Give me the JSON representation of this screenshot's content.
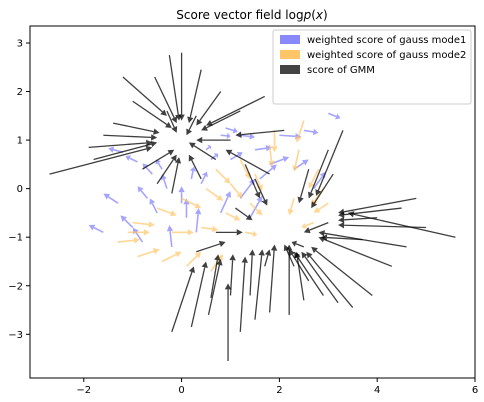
{
  "chart_data": {
    "type": "quiver",
    "title": "Score vector field log p(x)",
    "xlabel": "",
    "ylabel": "",
    "xlim": [
      -3.1,
      6.0
    ],
    "ylim": [
      -3.9,
      3.35
    ],
    "xticks": [
      -2,
      0,
      2,
      4,
      6
    ],
    "yticks": [
      -3,
      -2,
      -1,
      0,
      1,
      2,
      3
    ],
    "xtick_labels": [
      "−2",
      "0",
      "2",
      "4",
      "6"
    ],
    "ytick_labels": [
      "−3",
      "−2",
      "−1",
      "0",
      "1",
      "2",
      "3"
    ],
    "grid": false,
    "legend_position": "top-right",
    "modes": [
      {
        "center": [
          0,
          1
        ]
      },
      {
        "center": [
          2,
          -1
        ]
      }
    ],
    "series": [
      {
        "name": "weighted score of gauss mode1",
        "color": "#8888ff",
        "arrows": [
          [
            -1.2,
            0.75,
            -0.3,
            0.08
          ],
          [
            -0.9,
            0.55,
            -0.25,
            0.12
          ],
          [
            -0.6,
            0.3,
            -0.2,
            0.22
          ],
          [
            -0.3,
            0.0,
            -0.1,
            0.3
          ],
          [
            0.0,
            -0.3,
            0.0,
            0.35
          ],
          [
            0.4,
            0.1,
            0.12,
            0.25
          ],
          [
            0.6,
            0.6,
            0.15,
            0.12
          ],
          [
            0.8,
            1.1,
            0.2,
            -0.02
          ],
          [
            0.9,
            1.25,
            0.25,
            -0.08
          ],
          [
            1.2,
            1.1,
            0.3,
            -0.04
          ],
          [
            1.5,
            0.8,
            0.35,
            0.05
          ],
          [
            1.8,
            0.5,
            0.4,
            0.15
          ],
          [
            2.0,
            1.1,
            0.45,
            -0.03
          ],
          [
            2.5,
            1.2,
            0.3,
            -0.05
          ],
          [
            3.0,
            1.55,
            0.25,
            -0.1
          ],
          [
            -0.5,
            -0.5,
            -0.15,
            0.3
          ],
          [
            -1.0,
            -0.8,
            -0.25,
            0.25
          ],
          [
            -1.6,
            -0.9,
            -0.3,
            0.15
          ],
          [
            -0.8,
            -1.1,
            -0.2,
            0.3
          ],
          [
            -0.2,
            -1.2,
            -0.05,
            0.45
          ],
          [
            0.3,
            -0.9,
            0.05,
            0.5
          ],
          [
            0.8,
            -0.5,
            0.2,
            0.45
          ],
          [
            1.2,
            -0.2,
            0.3,
            0.4
          ],
          [
            1.6,
            0.2,
            0.35,
            0.3
          ],
          [
            0.2,
            0.2,
            0.05,
            0.25
          ],
          [
            -0.4,
            0.4,
            -0.12,
            0.2
          ],
          [
            0.5,
            0.8,
            0.1,
            0.08
          ],
          [
            1.0,
            0.6,
            0.25,
            0.15
          ],
          [
            2.3,
            0.4,
            0.3,
            0.2
          ],
          [
            2.7,
            0.0,
            0.25,
            0.35
          ],
          [
            -1.3,
            -0.3,
            -0.3,
            0.2
          ],
          [
            -0.7,
            -0.2,
            -0.2,
            0.25
          ],
          [
            0.1,
            -0.6,
            0.0,
            0.4
          ],
          [
            1.4,
            -0.6,
            0.25,
            0.45
          ]
        ]
      },
      {
        "name": "weighted score of gauss mode2",
        "color": "#ffc566",
        "arrows": [
          [
            -1.3,
            -1.1,
            0.45,
            0.05
          ],
          [
            -0.9,
            -1.4,
            0.45,
            0.15
          ],
          [
            -0.4,
            -1.5,
            0.4,
            0.2
          ],
          [
            0.1,
            -1.6,
            0.3,
            0.3
          ],
          [
            0.6,
            -1.7,
            0.25,
            0.35
          ],
          [
            -1.0,
            -0.7,
            0.45,
            -0.05
          ],
          [
            -0.5,
            -0.4,
            0.4,
            -0.15
          ],
          [
            0.0,
            -0.2,
            0.4,
            -0.2
          ],
          [
            0.5,
            0.0,
            0.35,
            -0.25
          ],
          [
            1.0,
            0.1,
            0.25,
            -0.3
          ],
          [
            1.5,
            0.3,
            0.15,
            -0.35
          ],
          [
            1.8,
            0.9,
            0.05,
            -0.45
          ],
          [
            1.9,
            1.2,
            0.0,
            -0.45
          ],
          [
            2.4,
            0.8,
            -0.1,
            -0.45
          ],
          [
            2.8,
            0.4,
            -0.2,
            -0.4
          ],
          [
            2.9,
            0.0,
            -0.25,
            -0.35
          ],
          [
            3.0,
            -0.3,
            -0.3,
            -0.2
          ],
          [
            2.7,
            -0.7,
            -0.25,
            -0.1
          ],
          [
            1.3,
            -0.9,
            0.25,
            -0.05
          ],
          [
            0.9,
            -0.5,
            0.3,
            -0.15
          ],
          [
            0.4,
            -0.8,
            0.35,
            -0.05
          ],
          [
            -0.2,
            -0.9,
            0.45,
            0.0
          ],
          [
            1.4,
            -0.3,
            0.25,
            -0.25
          ],
          [
            2.3,
            -0.2,
            -0.1,
            -0.35
          ],
          [
            2.5,
            1.4,
            -0.15,
            -0.45
          ],
          [
            1.2,
            0.6,
            0.2,
            -0.4
          ],
          [
            0.7,
            0.4,
            0.3,
            -0.3
          ],
          [
            -1.1,
            -0.9,
            0.45,
            0.0
          ]
        ]
      },
      {
        "name": "score of GMM",
        "color": "#000000",
        "arrows": [
          [
            -2.7,
            0.3,
            2.1,
            0.55
          ],
          [
            -1.9,
            0.85,
            1.3,
            0.1
          ],
          [
            -1.4,
            1.35,
            0.95,
            -0.2
          ],
          [
            -1.0,
            1.8,
            0.8,
            -0.55
          ],
          [
            -0.55,
            2.3,
            0.45,
            -0.95
          ],
          [
            -0.25,
            2.75,
            0.2,
            -1.35
          ],
          [
            0.0,
            2.8,
            0.0,
            -1.4
          ],
          [
            0.4,
            2.45,
            -0.25,
            -1.1
          ],
          [
            0.8,
            2.0,
            -0.5,
            -0.7
          ],
          [
            1.2,
            1.6,
            -0.8,
            -0.4
          ],
          [
            1.7,
            1.9,
            -1.2,
            -0.6
          ],
          [
            -1.2,
            2.3,
            0.9,
            -0.8
          ],
          [
            -0.8,
            0.4,
            0.65,
            0.4
          ],
          [
            -0.5,
            0.1,
            0.4,
            0.6
          ],
          [
            -0.2,
            -0.1,
            0.15,
            0.75
          ],
          [
            0.4,
            0.2,
            -0.25,
            0.5
          ],
          [
            0.7,
            0.6,
            -0.55,
            0.35
          ],
          [
            1.0,
            1.0,
            -0.7,
            0.0
          ],
          [
            -1.6,
            1.1,
            1.1,
            -0.05
          ],
          [
            -1.8,
            0.6,
            1.3,
            0.35
          ],
          [
            -0.3,
            1.6,
            0.2,
            -0.45
          ],
          [
            0.3,
            1.5,
            -0.2,
            -0.4
          ],
          [
            1.8,
            0.3,
            -0.9,
            0.5
          ],
          [
            2.1,
            1.2,
            -1.0,
            -0.1
          ],
          [
            2.3,
            -1.6,
            -0.2,
            0.45
          ],
          [
            2.6,
            -1.9,
            -0.4,
            0.65
          ],
          [
            2.9,
            -2.2,
            -0.6,
            0.9
          ],
          [
            3.2,
            -2.35,
            -0.75,
            1.05
          ],
          [
            3.5,
            -2.45,
            -0.95,
            1.15
          ],
          [
            3.9,
            -2.2,
            -1.25,
            1.0
          ],
          [
            4.3,
            -1.6,
            -1.5,
            0.6
          ],
          [
            4.6,
            -1.2,
            -1.8,
            0.3
          ],
          [
            5.0,
            -0.8,
            -1.8,
            0.05
          ],
          [
            5.6,
            -1.0,
            -2.2,
            0.5
          ],
          [
            4.8,
            -0.2,
            -1.6,
            -0.3
          ],
          [
            4.5,
            -0.4,
            -1.3,
            -0.15
          ],
          [
            4.0,
            -0.6,
            -0.8,
            -0.05
          ],
          [
            3.7,
            -1.05,
            -0.85,
            0.05
          ],
          [
            -0.2,
            -2.95,
            0.45,
            1.35
          ],
          [
            0.2,
            -2.85,
            0.3,
            1.35
          ],
          [
            0.55,
            -2.6,
            0.25,
            1.15
          ],
          [
            0.95,
            -3.55,
            0.0,
            1.6
          ],
          [
            1.2,
            -2.95,
            0.1,
            1.55
          ],
          [
            1.5,
            -2.7,
            0.15,
            1.45
          ],
          [
            1.8,
            -2.55,
            0.1,
            1.4
          ],
          [
            2.2,
            -2.6,
            0.0,
            1.45
          ],
          [
            0.6,
            -2.25,
            0.15,
            0.9
          ],
          [
            1.0,
            -2.2,
            0.05,
            0.85
          ],
          [
            1.4,
            -2.2,
            0.05,
            0.95
          ],
          [
            2.5,
            -2.3,
            -0.15,
            1.0
          ],
          [
            3.1,
            0.3,
            -0.45,
            -0.7
          ],
          [
            3.3,
            1.2,
            -0.55,
            -1.35
          ],
          [
            3.0,
            0.8,
            -0.4,
            -1.0
          ],
          [
            2.6,
            0.4,
            -0.2,
            -0.7
          ],
          [
            1.5,
            0.2,
            0.25,
            -0.55
          ],
          [
            1.1,
            -0.4,
            0.35,
            -0.25
          ],
          [
            0.7,
            -0.9,
            0.55,
            0.0
          ],
          [
            0.3,
            -1.3,
            0.6,
            0.2
          ],
          [
            2.5,
            -1.2,
            -0.25,
            0.1
          ],
          [
            1.7,
            -1.6,
            0.1,
            0.35
          ],
          [
            3.0,
            -0.7,
            -0.5,
            -0.2
          ],
          [
            1.3,
            0.5,
            0.3,
            -0.7
          ]
        ]
      }
    ]
  }
}
